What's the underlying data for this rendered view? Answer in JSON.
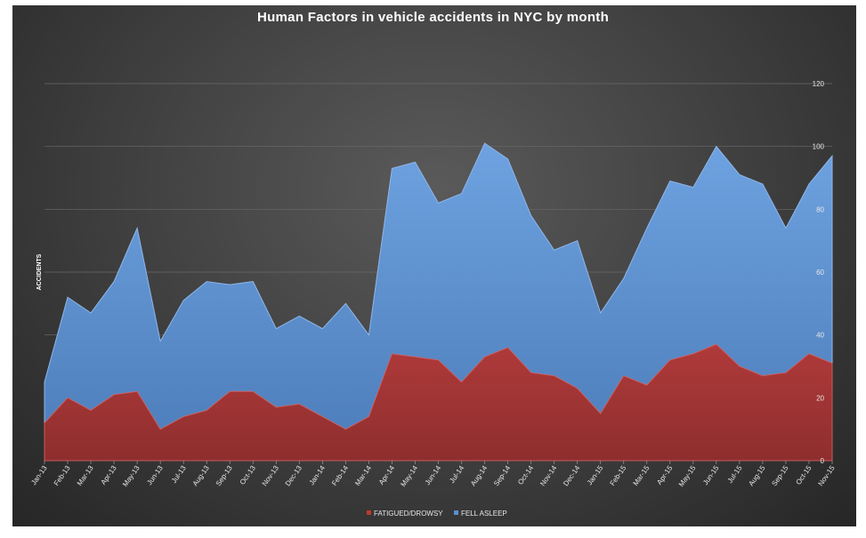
{
  "chart_data": {
    "type": "area",
    "title": "Human Factors in vehicle accidents in NYC by month",
    "xlabel": "",
    "ylabel": "ACCIDENTS",
    "ylim": [
      0,
      120
    ],
    "yticks": [
      0,
      20,
      40,
      60,
      80,
      100,
      120
    ],
    "stacked": true,
    "grid": true,
    "legend_position": "bottom",
    "categories": [
      "Jan-13",
      "Feb-13",
      "Mar-13",
      "Apr-13",
      "May-13",
      "Jun-13",
      "Jul-13",
      "Aug-13",
      "Sep-13",
      "Oct-13",
      "Nov-13",
      "Dec-13",
      "Jan-14",
      "Feb-14",
      "Mar-14",
      "Apr-14",
      "May-14",
      "Jun-14",
      "Jul-14",
      "Aug-14",
      "Sep-14",
      "Oct-14",
      "Nov-14",
      "Dec-14",
      "Jan-15",
      "Feb-15",
      "Mar-15",
      "Apr-15",
      "May-15",
      "Jun-15",
      "Jul-15",
      "Aug-15",
      "Sep-15",
      "Oct-15",
      "Nov-15"
    ],
    "series": [
      {
        "name": "FATIGUED/DROWSY",
        "color": "#9c3333",
        "values": [
          12,
          20,
          16,
          21,
          22,
          10,
          14,
          16,
          22,
          22,
          17,
          18,
          14,
          10,
          14,
          34,
          33,
          32,
          25,
          33,
          36,
          28,
          27,
          23,
          15,
          27,
          24,
          32,
          34,
          37,
          30,
          27,
          28,
          34,
          31
        ]
      },
      {
        "name": "FELL ASLEEP",
        "color": "#5b8fcf",
        "values": [
          13,
          32,
          31,
          36,
          52,
          28,
          37,
          41,
          34,
          35,
          25,
          28,
          28,
          40,
          26,
          59,
          62,
          50,
          60,
          68,
          60,
          50,
          40,
          47,
          32,
          31,
          50,
          57,
          53,
          63,
          61,
          61,
          46,
          54,
          66
        ]
      }
    ]
  }
}
